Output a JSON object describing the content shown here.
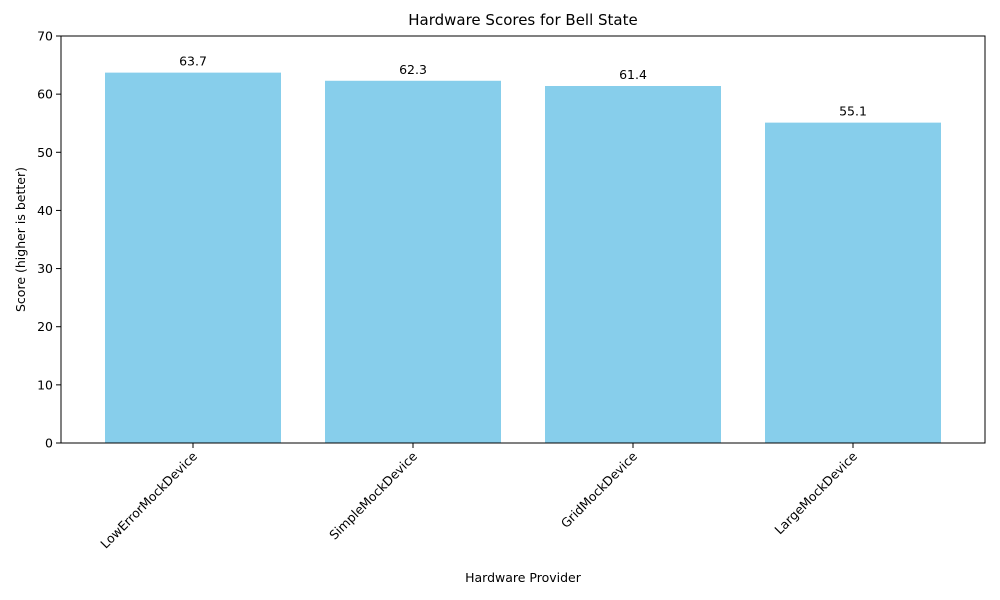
{
  "chart_data": {
    "type": "bar",
    "title": "Hardware Scores for Bell State",
    "xlabel": "Hardware Provider",
    "ylabel": "Score (higher is better)",
    "categories": [
      "LowErrorMockDevice",
      "SimpleMockDevice",
      "GridMockDevice",
      "LargeMockDevice"
    ],
    "values": [
      63.7,
      62.3,
      61.4,
      55.1
    ],
    "data_labels": [
      "63.7",
      "62.3",
      "61.4",
      "55.1"
    ],
    "ylim": [
      0,
      70
    ],
    "yticks": [
      0,
      10,
      20,
      30,
      40,
      50,
      60,
      70
    ],
    "ytick_labels": [
      "0",
      "10",
      "20",
      "30",
      "40",
      "50",
      "60",
      "70"
    ],
    "bar_color": "#87ceeb",
    "x_tick_rotation_deg": 45,
    "grid": false,
    "legend": "none"
  }
}
